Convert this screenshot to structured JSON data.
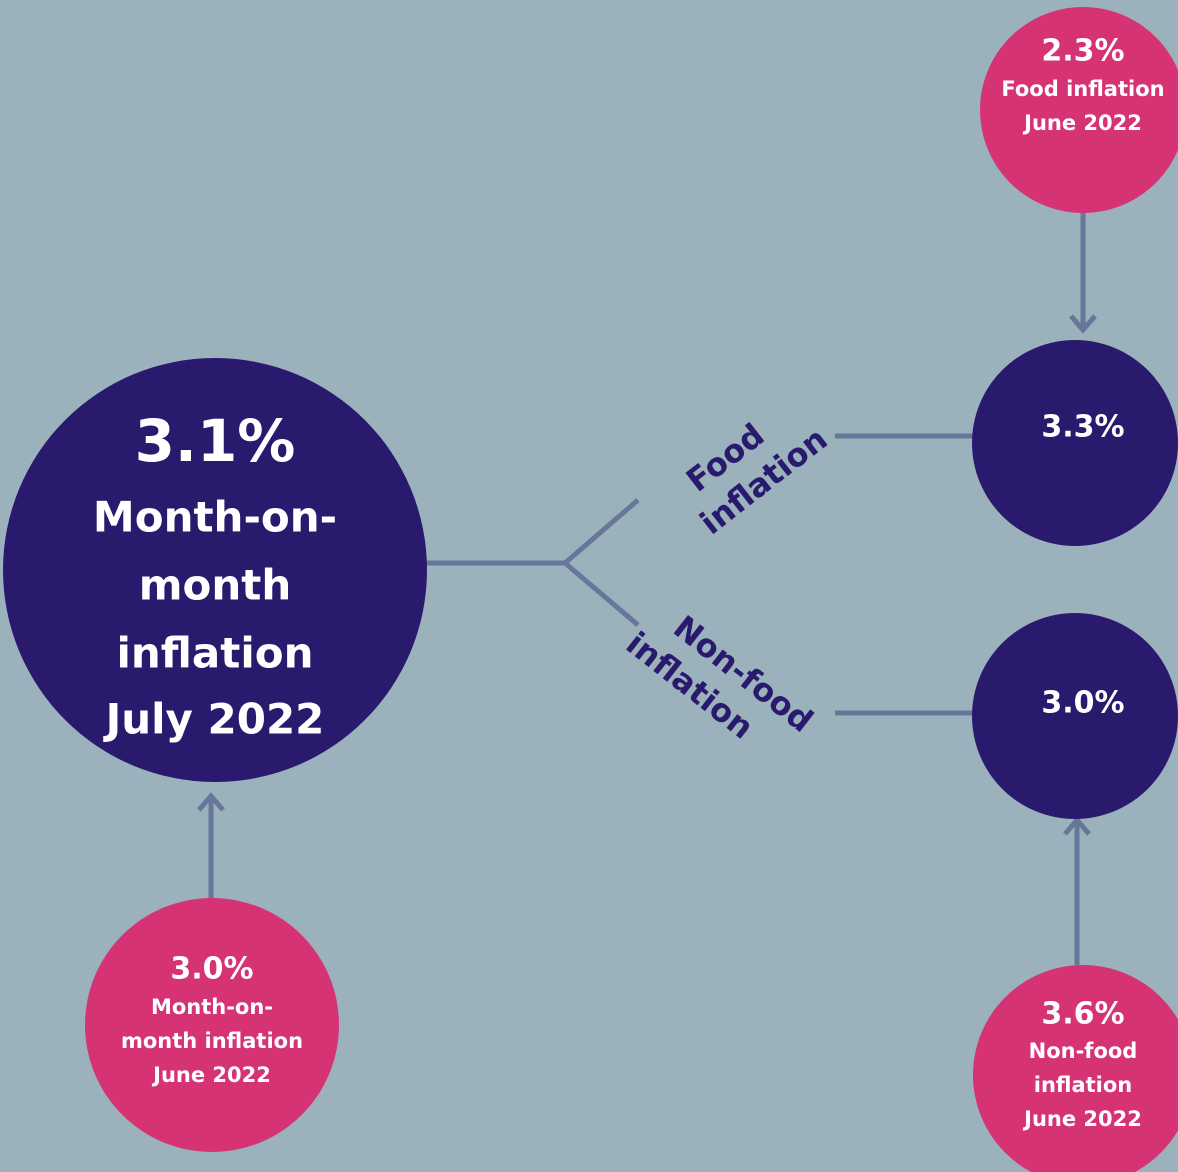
{
  "nodes": [
    {
      "value": "3.1%",
      "label": [
        "Month-on-",
        "month",
        "inflation",
        "July 2022"
      ]
    },
    {
      "value": "3.3%"
    },
    {
      "value": "3.0%"
    },
    {
      "value": "2.3%",
      "label": [
        "Food inflation",
        "June 2022"
      ]
    },
    {
      "value": "3.0%",
      "label": [
        "Month-on-",
        "month inflation",
        "June 2022"
      ]
    },
    {
      "value": "3.6%",
      "label": [
        "Non-food",
        "inflation",
        "June 2022"
      ]
    }
  ],
  "branches": [
    {
      "label": [
        "Food",
        "inflation"
      ]
    },
    {
      "label": [
        "Non-food",
        "inflation"
      ]
    }
  ]
}
